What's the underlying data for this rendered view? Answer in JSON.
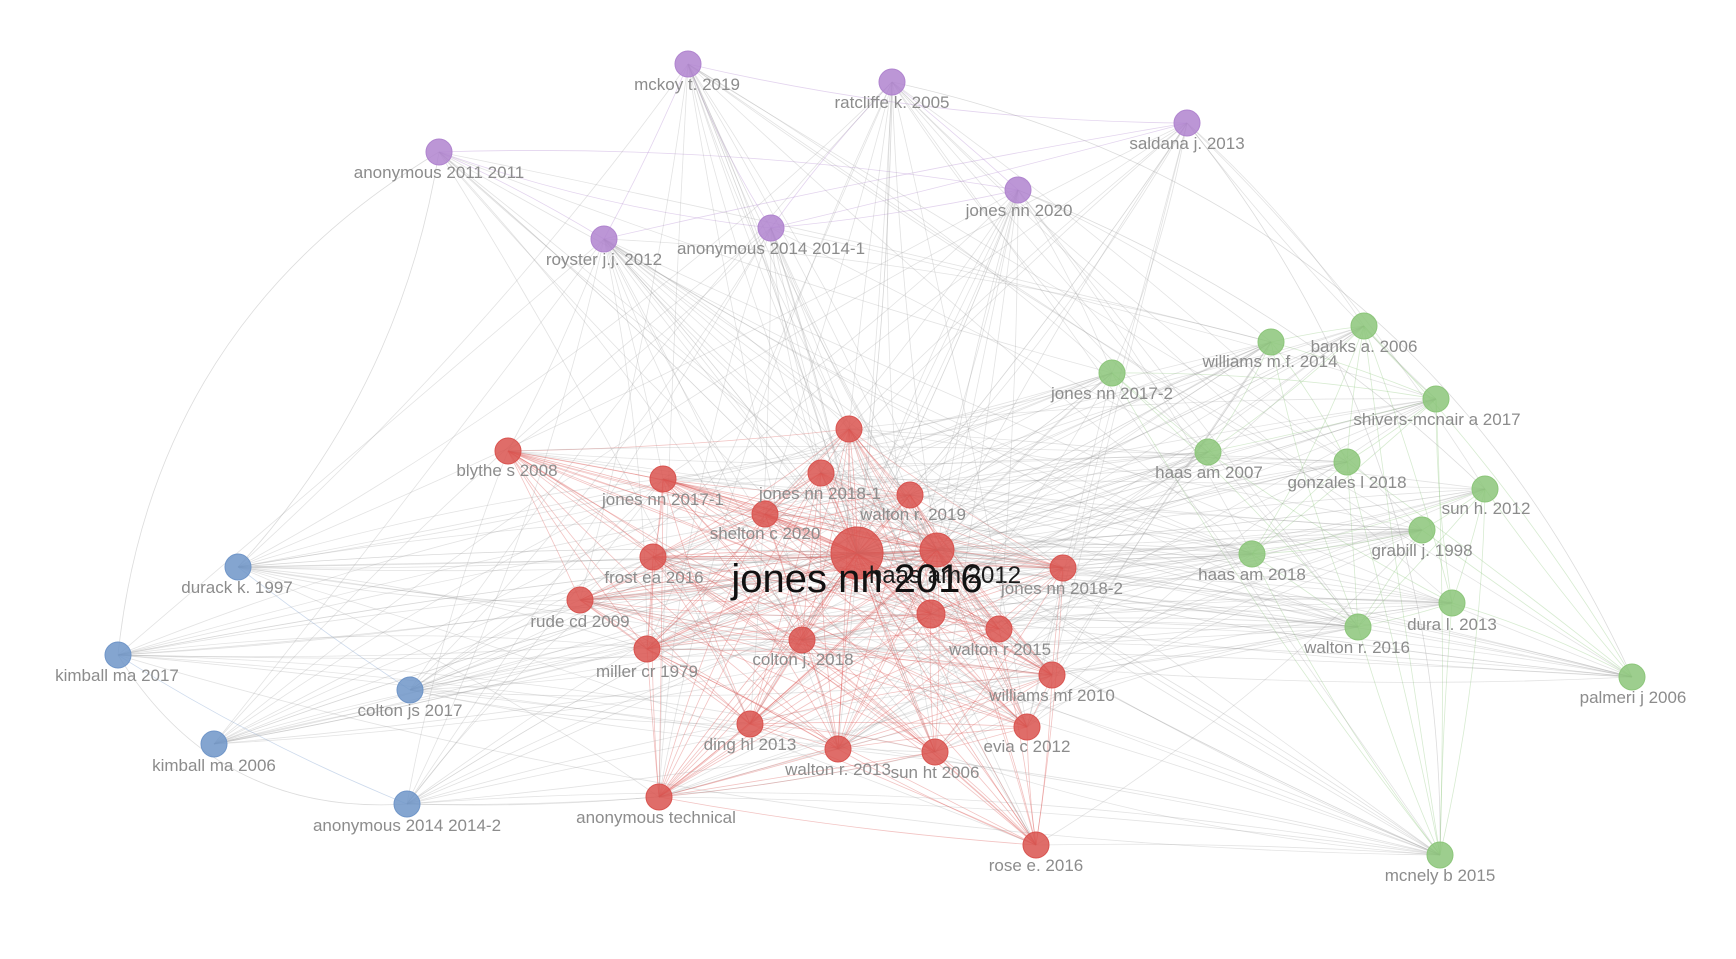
{
  "colors": {
    "red": "#d9534f",
    "green": "#8cc67a",
    "blue": "#6f95c8",
    "purple": "#b084cf",
    "edge_gray": "#9a9a9a",
    "label_gray": "#8c8c8c"
  },
  "clusters": [
    {
      "id": "red",
      "color": "#d9534f"
    },
    {
      "id": "green",
      "color": "#8cc67a"
    },
    {
      "id": "blue",
      "color": "#6f95c8"
    },
    {
      "id": "purple",
      "color": "#b084cf"
    }
  ],
  "nodes": [
    {
      "id": "jones_nn_2016",
      "label": "jones nn 2016",
      "cluster": "red",
      "weight": "max"
    },
    {
      "id": "haas_am_2012",
      "label": "haas am 2012",
      "cluster": "red",
      "weight": "high"
    },
    {
      "id": "blythe_s_2008",
      "label": "blythe s 2008",
      "cluster": "red"
    },
    {
      "id": "jones_nn_2017_1",
      "label": "jones nn 2017-1",
      "cluster": "red"
    },
    {
      "id": "jones_nn_2018_1",
      "label": "jones nn 2018-1",
      "cluster": "red"
    },
    {
      "id": "walton_r_2019",
      "label": "walton r. 2019",
      "cluster": "red"
    },
    {
      "id": "shelton_c_2020",
      "label": "shelton c 2020",
      "cluster": "red"
    },
    {
      "id": "frost_ea_2016",
      "label": "frost ea 2016",
      "cluster": "red"
    },
    {
      "id": "jones_nn_2018_2",
      "label": "jones nn 2018-2",
      "cluster": "red"
    },
    {
      "id": "rude_cd_2009",
      "label": "rude cd 2009",
      "cluster": "red"
    },
    {
      "id": "miller_cr_1979",
      "label": "miller cr 1979",
      "cluster": "red"
    },
    {
      "id": "colton_j_2018",
      "label": "colton j. 2018",
      "cluster": "red"
    },
    {
      "id": "walton_r_2015",
      "label": "walton r 2015",
      "cluster": "red"
    },
    {
      "id": "williams_mf_2010",
      "label": "williams mf 2010",
      "cluster": "red"
    },
    {
      "id": "ding_hl_2013",
      "label": "ding hl 2013",
      "cluster": "red"
    },
    {
      "id": "walton_r_2013",
      "label": "walton r. 2013",
      "cluster": "red"
    },
    {
      "id": "sun_ht_2006",
      "label": "sun ht 2006",
      "cluster": "red"
    },
    {
      "id": "evia_c_2012",
      "label": "evia c 2012",
      "cluster": "red"
    },
    {
      "id": "anonymous_technical",
      "label": "anonymous technical",
      "cluster": "red"
    },
    {
      "id": "rose_e_2016",
      "label": "rose e. 2016",
      "cluster": "red"
    },
    {
      "id": "red_top",
      "label": "",
      "cluster": "red"
    },
    {
      "id": "red_mid",
      "label": "",
      "cluster": "red"
    },
    {
      "id": "mckoy_t_2019",
      "label": "mckoy t. 2019",
      "cluster": "purple"
    },
    {
      "id": "ratcliffe_k_2005",
      "label": "ratcliffe k. 2005",
      "cluster": "purple"
    },
    {
      "id": "saldana_j_2013",
      "label": "saldana j. 2013",
      "cluster": "purple"
    },
    {
      "id": "anonymous_2011_2011",
      "label": "anonymous 2011 2011",
      "cluster": "purple"
    },
    {
      "id": "jones_nn_2020",
      "label": "jones nn 2020",
      "cluster": "purple"
    },
    {
      "id": "royster_jj_2012",
      "label": "royster j.j. 2012",
      "cluster": "purple"
    },
    {
      "id": "anonymous_2014_2014_1",
      "label": "anonymous 2014 2014-1",
      "cluster": "purple"
    },
    {
      "id": "banks_a_2006",
      "label": "banks a. 2006",
      "cluster": "green"
    },
    {
      "id": "williams_mf_2014",
      "label": "williams m.f. 2014",
      "cluster": "green"
    },
    {
      "id": "jones_nn_2017_2",
      "label": "jones nn 2017-2",
      "cluster": "green"
    },
    {
      "id": "shivers_mcnair_a_2017",
      "label": "shivers-mcnair a 2017",
      "cluster": "green"
    },
    {
      "id": "haas_am_2007",
      "label": "haas am 2007",
      "cluster": "green"
    },
    {
      "id": "gonzales_l_2018",
      "label": "gonzales l 2018",
      "cluster": "green"
    },
    {
      "id": "sun_h_2012",
      "label": "sun h. 2012",
      "cluster": "green"
    },
    {
      "id": "grabill_j_1998",
      "label": "grabill j. 1998",
      "cluster": "green"
    },
    {
      "id": "haas_am_2018",
      "label": "haas am 2018",
      "cluster": "green"
    },
    {
      "id": "dura_l_2013",
      "label": "dura l. 2013",
      "cluster": "green"
    },
    {
      "id": "walton_r_2016",
      "label": "walton r. 2016",
      "cluster": "green"
    },
    {
      "id": "palmeri_j_2006",
      "label": "palmeri j 2006",
      "cluster": "green"
    },
    {
      "id": "mcnely_b_2015",
      "label": "mcnely b 2015",
      "cluster": "green"
    },
    {
      "id": "durack_k_1997",
      "label": "durack k. 1997",
      "cluster": "blue"
    },
    {
      "id": "kimball_ma_2017",
      "label": "kimball ma 2017",
      "cluster": "blue"
    },
    {
      "id": "colton_js_2017",
      "label": "colton js 2017",
      "cluster": "blue"
    },
    {
      "id": "kimball_ma_2006",
      "label": "kimball ma 2006",
      "cluster": "blue"
    },
    {
      "id": "anonymous_2014_2014_2",
      "label": "anonymous 2014 2014-2",
      "cluster": "blue"
    }
  ]
}
